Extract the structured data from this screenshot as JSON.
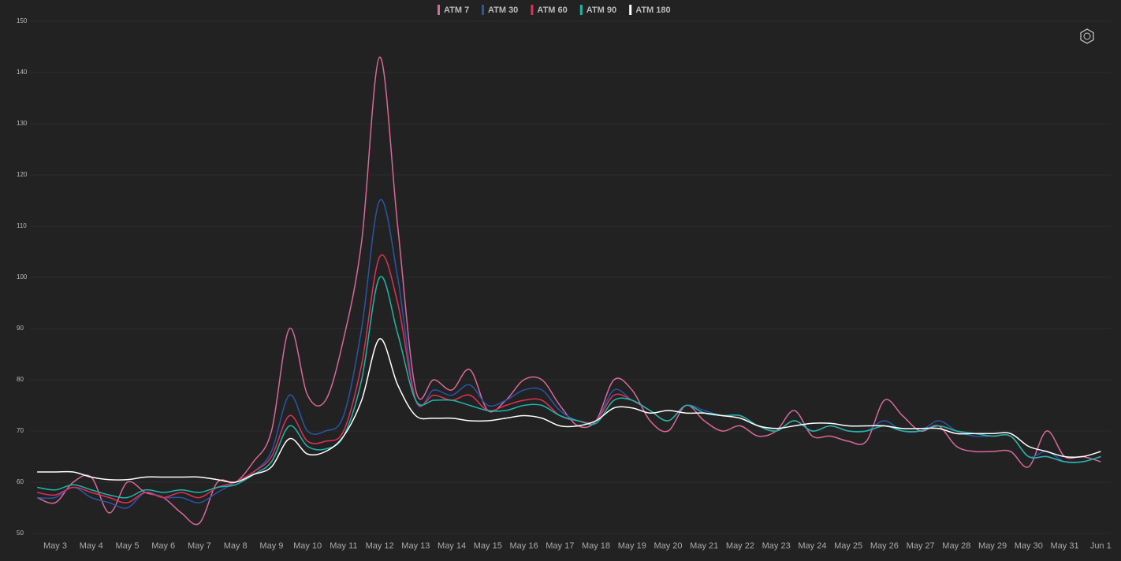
{
  "chart_data": {
    "type": "line",
    "categories": [
      null,
      "May 3",
      null,
      "May 4",
      null,
      "May 5",
      null,
      "May 6",
      null,
      "May 7",
      null,
      "May 8",
      null,
      "May 9",
      null,
      "May 10",
      null,
      "May 11",
      null,
      "May 12",
      null,
      "May 13",
      null,
      "May 14",
      null,
      "May 15",
      null,
      "May 16",
      null,
      "May 17",
      null,
      "May 18",
      null,
      "May 19",
      null,
      "May 20",
      null,
      "May 21",
      null,
      "May 22",
      null,
      "May 23",
      null,
      "May 24",
      null,
      "May 25",
      null,
      "May 26",
      null,
      "May 27",
      null,
      "May 28",
      null,
      "May 29",
      null,
      "May 30",
      null,
      "May 31",
      null,
      "Jun 1"
    ],
    "series": [
      {
        "name": "ATM 7",
        "color": "#d9689a",
        "values": [
          57,
          56,
          60,
          61,
          54,
          60,
          58,
          57,
          54,
          52,
          60,
          60,
          64,
          70,
          90,
          77,
          76,
          88,
          107,
          143,
          110,
          78,
          80,
          78,
          82,
          74,
          76,
          80,
          80,
          75,
          71,
          72,
          80,
          78,
          72,
          70,
          75,
          72,
          70,
          71,
          69,
          70,
          74,
          69,
          69,
          68,
          68,
          76,
          73,
          70,
          71,
          67,
          66,
          66,
          66,
          63,
          70,
          65,
          65,
          64
        ]
      },
      {
        "name": "ATM 30",
        "color": "#2a55a8",
        "values": [
          57,
          57,
          59,
          57,
          56,
          55,
          58,
          57,
          57,
          56,
          58,
          60,
          62,
          66,
          77,
          70,
          70,
          73,
          90,
          115,
          100,
          76,
          78,
          77,
          79,
          75,
          76,
          78,
          78,
          74,
          72,
          72,
          78,
          76,
          74,
          72,
          75,
          74,
          73,
          73,
          71,
          70,
          72,
          70,
          71,
          70,
          70,
          72,
          70,
          70,
          72,
          70,
          69,
          69,
          69,
          65,
          66,
          64,
          64,
          65
        ]
      },
      {
        "name": "ATM 60",
        "color": "#e0305a",
        "values": [
          58,
          57.5,
          59,
          58,
          57,
          56,
          58,
          57,
          58,
          57,
          59,
          60,
          62,
          65,
          73,
          68,
          68,
          70,
          83,
          104,
          95,
          76,
          77,
          76,
          77,
          74,
          75,
          76,
          76,
          73,
          72,
          72,
          77,
          76,
          74,
          72,
          75,
          73.5,
          73,
          73,
          71,
          70,
          72,
          70,
          71,
          70,
          70,
          71,
          70,
          70,
          71,
          70,
          69.5,
          69,
          69,
          65,
          65,
          64,
          64,
          65
        ]
      },
      {
        "name": "ATM 90",
        "color": "#1bb7a8",
        "values": [
          59,
          58.5,
          59.5,
          58.5,
          57.5,
          57,
          58.5,
          58,
          58.5,
          58,
          59,
          59.5,
          61.5,
          64,
          71,
          67,
          66.5,
          69,
          80,
          100,
          89,
          76,
          76,
          76,
          75,
          74,
          74,
          75,
          75,
          73,
          72,
          71.5,
          76,
          76,
          74,
          72,
          75,
          73.5,
          73,
          73,
          71,
          70,
          72,
          70,
          71,
          70,
          70,
          71,
          70,
          70,
          71,
          70,
          69.5,
          69,
          69,
          65,
          65,
          64,
          64,
          65
        ]
      },
      {
        "name": "ATM 180",
        "color": "#ffffff",
        "values": [
          62,
          62,
          62,
          61,
          60.5,
          60.5,
          61,
          61,
          61,
          61,
          60.5,
          60,
          61.5,
          63,
          68.5,
          65.5,
          66,
          69,
          76,
          88,
          79,
          73,
          72.5,
          72.5,
          72,
          72,
          72.5,
          73,
          72.5,
          71,
          71,
          72,
          74.5,
          74.5,
          73.5,
          74,
          73.5,
          73.5,
          73,
          72.5,
          71,
          70.5,
          71,
          71.5,
          71.5,
          71,
          71,
          71,
          70.5,
          70.5,
          70.5,
          69.5,
          69.5,
          69.5,
          69.5,
          67,
          66,
          65,
          65,
          66
        ]
      }
    ],
    "ylim": [
      50,
      150
    ],
    "yticks": [
      50,
      60,
      70,
      80,
      90,
      100,
      110,
      120,
      130,
      140,
      150
    ],
    "grid": true
  }
}
